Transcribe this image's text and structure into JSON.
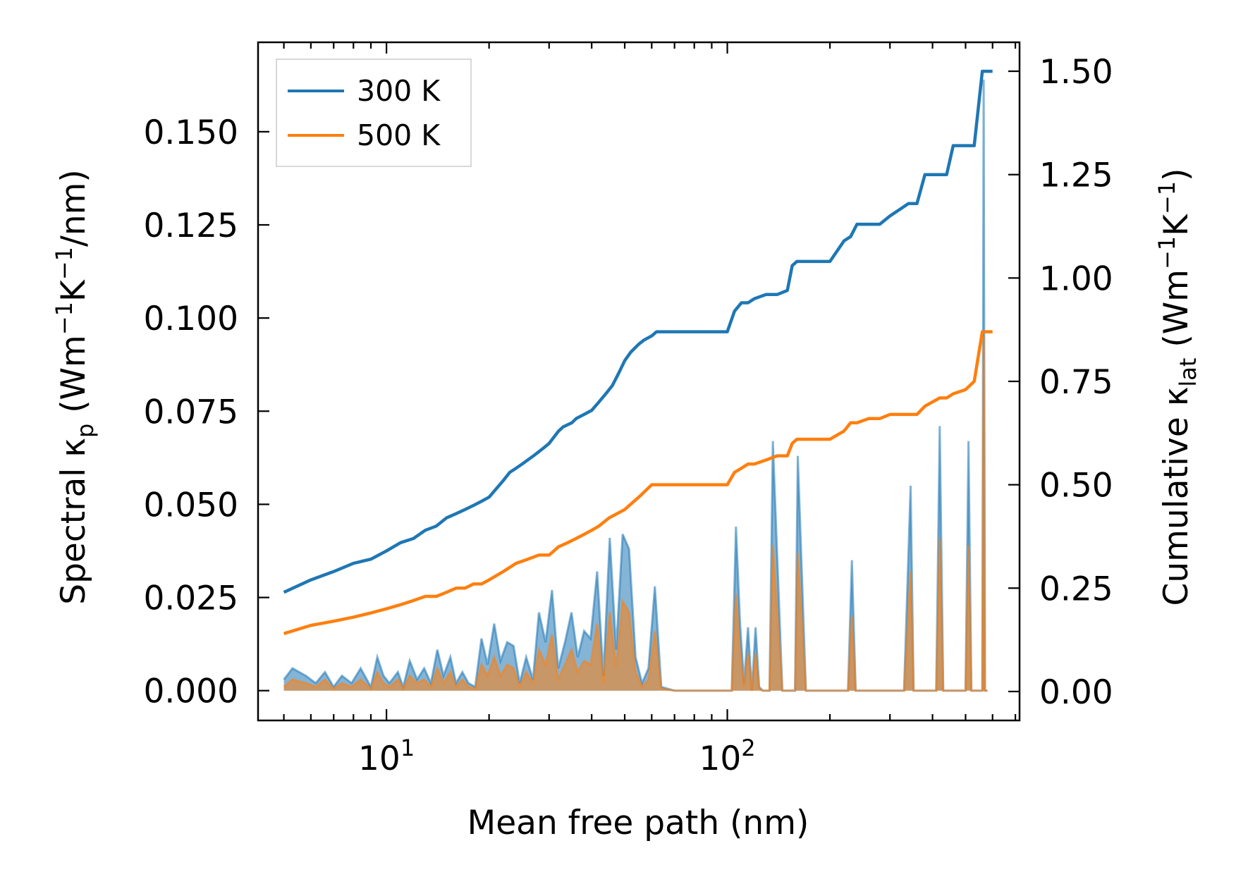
{
  "chart_data": {
    "type": "line",
    "xlabel": "Mean free path (nm)",
    "ylabel_left": "Spectral κ_p (Wm⁻¹K⁻¹/nm)",
    "ylabel_right": "Cumulative κ_lat (Wm⁻¹K⁻¹)",
    "x_scale": "log",
    "xlim": [
      4.2,
      720
    ],
    "ylim_left": [
      -0.008,
      0.174
    ],
    "ylim_right": [
      -0.07,
      1.57
    ],
    "grid": false,
    "legend_location": "top-left",
    "x_tick_labels": [
      {
        "value": 10,
        "base": "10",
        "exp": "1"
      },
      {
        "value": 100,
        "base": "10",
        "exp": "2"
      }
    ],
    "y_left_ticks": [
      0.0,
      0.025,
      0.05,
      0.075,
      0.1,
      0.125,
      0.15
    ],
    "y_left_tick_labels": [
      "0.000",
      "0.025",
      "0.050",
      "0.075",
      "0.100",
      "0.125",
      "0.150"
    ],
    "y_right_ticks": [
      0.0,
      0.25,
      0.5,
      0.75,
      1.0,
      1.25,
      1.5
    ],
    "y_right_tick_labels": [
      "0.00",
      "0.25",
      "0.50",
      "0.75",
      "1.00",
      "1.25",
      "1.50"
    ],
    "series": [
      {
        "name": "300 K",
        "color": "#1f77b4",
        "axis": "right",
        "cumulative": {
          "x": [
            5,
            6,
            7,
            8,
            9,
            10,
            11,
            12,
            13,
            14,
            15,
            16,
            17,
            18,
            19,
            20,
            22,
            23,
            24,
            25,
            27,
            28,
            29,
            30,
            32,
            33,
            35,
            36,
            38,
            40,
            42,
            44,
            46,
            48,
            50,
            52,
            55,
            57,
            60,
            62,
            70,
            80,
            90,
            100,
            105,
            110,
            115,
            120,
            130,
            140,
            150,
            155,
            160,
            180,
            200,
            220,
            230,
            240,
            260,
            280,
            300,
            340,
            350,
            360,
            380,
            420,
            440,
            460,
            500,
            530,
            560,
            580,
            600
          ],
          "y": [
            0.24,
            0.27,
            0.29,
            0.31,
            0.32,
            0.34,
            0.36,
            0.37,
            0.39,
            0.4,
            0.42,
            0.43,
            0.44,
            0.45,
            0.46,
            0.47,
            0.51,
            0.53,
            0.54,
            0.55,
            0.57,
            0.58,
            0.59,
            0.6,
            0.63,
            0.64,
            0.65,
            0.66,
            0.67,
            0.68,
            0.7,
            0.72,
            0.74,
            0.77,
            0.8,
            0.82,
            0.84,
            0.85,
            0.86,
            0.87,
            0.87,
            0.87,
            0.87,
            0.87,
            0.92,
            0.94,
            0.94,
            0.95,
            0.96,
            0.96,
            0.97,
            1.03,
            1.04,
            1.04,
            1.04,
            1.09,
            1.1,
            1.13,
            1.13,
            1.13,
            1.15,
            1.18,
            1.18,
            1.18,
            1.25,
            1.25,
            1.25,
            1.32,
            1.32,
            1.32,
            1.5,
            1.5,
            1.5
          ]
        },
        "spectral": {
          "x": [
            5,
            5.3,
            5.8,
            6.2,
            6.6,
            7.0,
            7.4,
            7.9,
            8.4,
            9.0,
            9.4,
            9.8,
            10.2,
            10.8,
            11.2,
            11.7,
            12.3,
            12.9,
            13.5,
            14.1,
            14.7,
            15.4,
            16.0,
            16.7,
            17.4,
            18.2,
            19.0,
            19.8,
            20.7,
            21.6,
            22.6,
            23.6,
            24.6,
            25.7,
            26.9,
            28.0,
            29.3,
            30.6,
            31.9,
            33.4,
            34.9,
            36.4,
            38.0,
            39.7,
            41.5,
            43.3,
            45.2,
            47.2,
            49.3,
            51.5,
            53.8,
            56.2,
            58.7,
            61.3,
            64.0,
            70,
            80,
            90,
            100,
            103,
            106,
            109,
            112,
            115,
            118,
            121,
            124,
            127,
            130,
            133,
            136,
            145,
            150,
            155,
            158,
            161,
            170,
            200,
            220,
            226,
            232,
            238,
            250,
            255,
            260,
            265,
            270,
            280,
            330,
            345,
            352,
            360,
            380,
            410,
            420,
            430,
            440,
            450,
            480,
            500,
            510,
            520,
            530,
            545,
            560,
            565,
            570,
            575,
            580
          ],
          "y": [
            0.003,
            0.006,
            0.004,
            0.002,
            0.005,
            0.001,
            0.004,
            0.002,
            0.006,
            0.001,
            0.009,
            0.004,
            0.002,
            0.005,
            0.001,
            0.008,
            0.003,
            0.006,
            0.002,
            0.011,
            0.004,
            0.009,
            0.002,
            0.005,
            0.002,
            0.001,
            0.014,
            0.007,
            0.018,
            0.008,
            0.013,
            0.012,
            0.002,
            0.009,
            0.003,
            0.021,
            0.013,
            0.027,
            0.006,
            0.013,
            0.021,
            0.009,
            0.016,
            0.014,
            0.032,
            0.004,
            0.041,
            0.011,
            0.042,
            0.038,
            0.009,
            0.002,
            0.006,
            0.028,
            0.001,
            0.0,
            0.0,
            0.0,
            0.0,
            0.0,
            0.044,
            0.018,
            0.002,
            0.017,
            0.0,
            0.017,
            0.001,
            0.0,
            0.0,
            0.0,
            0.067,
            0.0,
            0.0,
            0.0,
            0.0,
            0.063,
            0.0,
            0.0,
            0.0,
            0.0,
            0.035,
            0.0,
            0.0,
            0.0,
            0.0,
            0.0,
            0.0,
            0.0,
            0.0,
            0.055,
            0.0,
            0.0,
            0.0,
            0.0,
            0.071,
            0.0,
            0.0,
            0.0,
            0.0,
            0.0,
            0.067,
            0.0,
            0.0,
            0.0,
            0.0,
            0.164,
            0.0,
            0.0,
            0.0
          ]
        }
      },
      {
        "name": "500 K",
        "color": "#ff7f0e",
        "axis": "right",
        "cumulative": {
          "x": [
            5,
            6,
            7,
            8,
            9,
            10,
            11,
            12,
            13,
            14,
            15,
            16,
            17,
            18,
            19,
            20,
            22,
            24,
            26,
            28,
            30,
            32,
            34,
            36,
            38,
            40,
            42,
            45,
            50,
            55,
            60,
            70,
            80,
            90,
            100,
            105,
            110,
            115,
            120,
            130,
            140,
            150,
            155,
            160,
            180,
            200,
            220,
            230,
            240,
            260,
            280,
            300,
            340,
            350,
            360,
            380,
            420,
            440,
            460,
            500,
            530,
            560,
            580,
            600
          ],
          "y": [
            0.14,
            0.16,
            0.17,
            0.18,
            0.19,
            0.2,
            0.21,
            0.22,
            0.23,
            0.23,
            0.24,
            0.25,
            0.25,
            0.26,
            0.26,
            0.27,
            0.29,
            0.31,
            0.32,
            0.33,
            0.33,
            0.35,
            0.36,
            0.37,
            0.38,
            0.39,
            0.4,
            0.42,
            0.44,
            0.47,
            0.5,
            0.5,
            0.5,
            0.5,
            0.5,
            0.53,
            0.54,
            0.55,
            0.55,
            0.56,
            0.57,
            0.57,
            0.6,
            0.61,
            0.61,
            0.61,
            0.63,
            0.65,
            0.65,
            0.66,
            0.66,
            0.67,
            0.67,
            0.67,
            0.67,
            0.69,
            0.71,
            0.71,
            0.72,
            0.73,
            0.75,
            0.87,
            0.87,
            0.87
          ]
        },
        "spectral": {
          "x": [
            5,
            5.3,
            5.8,
            6.2,
            6.6,
            7.0,
            7.4,
            7.9,
            8.4,
            9.0,
            9.4,
            9.8,
            10.2,
            10.8,
            11.2,
            11.7,
            12.3,
            12.9,
            13.5,
            14.1,
            14.7,
            15.4,
            16.0,
            16.7,
            17.4,
            18.2,
            19.0,
            19.8,
            20.7,
            21.6,
            22.6,
            23.6,
            24.6,
            25.7,
            26.9,
            28.0,
            29.3,
            30.6,
            31.9,
            33.4,
            34.9,
            36.4,
            38.0,
            39.7,
            41.5,
            43.3,
            45.2,
            47.2,
            49.3,
            51.5,
            53.8,
            56.2,
            58.7,
            61.3,
            64.0,
            70,
            80,
            90,
            100,
            103,
            106,
            109,
            112,
            115,
            118,
            121,
            124,
            127,
            130,
            133,
            136,
            145,
            150,
            155,
            158,
            161,
            170,
            200,
            220,
            226,
            232,
            238,
            250,
            255,
            260,
            265,
            270,
            280,
            330,
            345,
            352,
            360,
            380,
            410,
            420,
            430,
            440,
            450,
            480,
            500,
            510,
            520,
            530,
            545,
            560,
            565,
            570,
            575,
            580
          ],
          "y": [
            0.001,
            0.003,
            0.002,
            0.001,
            0.003,
            0.0005,
            0.002,
            0.001,
            0.003,
            0.0005,
            0.005,
            0.002,
            0.001,
            0.003,
            0.0005,
            0.004,
            0.002,
            0.003,
            0.001,
            0.006,
            0.002,
            0.005,
            0.001,
            0.003,
            0.001,
            0.0005,
            0.007,
            0.004,
            0.009,
            0.004,
            0.007,
            0.006,
            0.001,
            0.005,
            0.002,
            0.011,
            0.007,
            0.015,
            0.003,
            0.007,
            0.011,
            0.005,
            0.008,
            0.007,
            0.018,
            0.002,
            0.021,
            0.006,
            0.024,
            0.021,
            0.005,
            0.001,
            0.003,
            0.016,
            0.0005,
            0.0,
            0.0,
            0.0,
            0.0,
            0.0,
            0.026,
            0.01,
            0.001,
            0.01,
            0.0,
            0.01,
            0.0005,
            0.0,
            0.0,
            0.0,
            0.039,
            0.0,
            0.0,
            0.0,
            0.0,
            0.037,
            0.0,
            0.0,
            0.0,
            0.0,
            0.02,
            0.0,
            0.0,
            0.0,
            0.0,
            0.0,
            0.0,
            0.0,
            0.0,
            0.032,
            0.0,
            0.0,
            0.0,
            0.0,
            0.041,
            0.0,
            0.0,
            0.0,
            0.0,
            0.0,
            0.039,
            0.0,
            0.0,
            0.0,
            0.0,
            0.095,
            0.0,
            0.0,
            0.0
          ]
        }
      }
    ]
  }
}
